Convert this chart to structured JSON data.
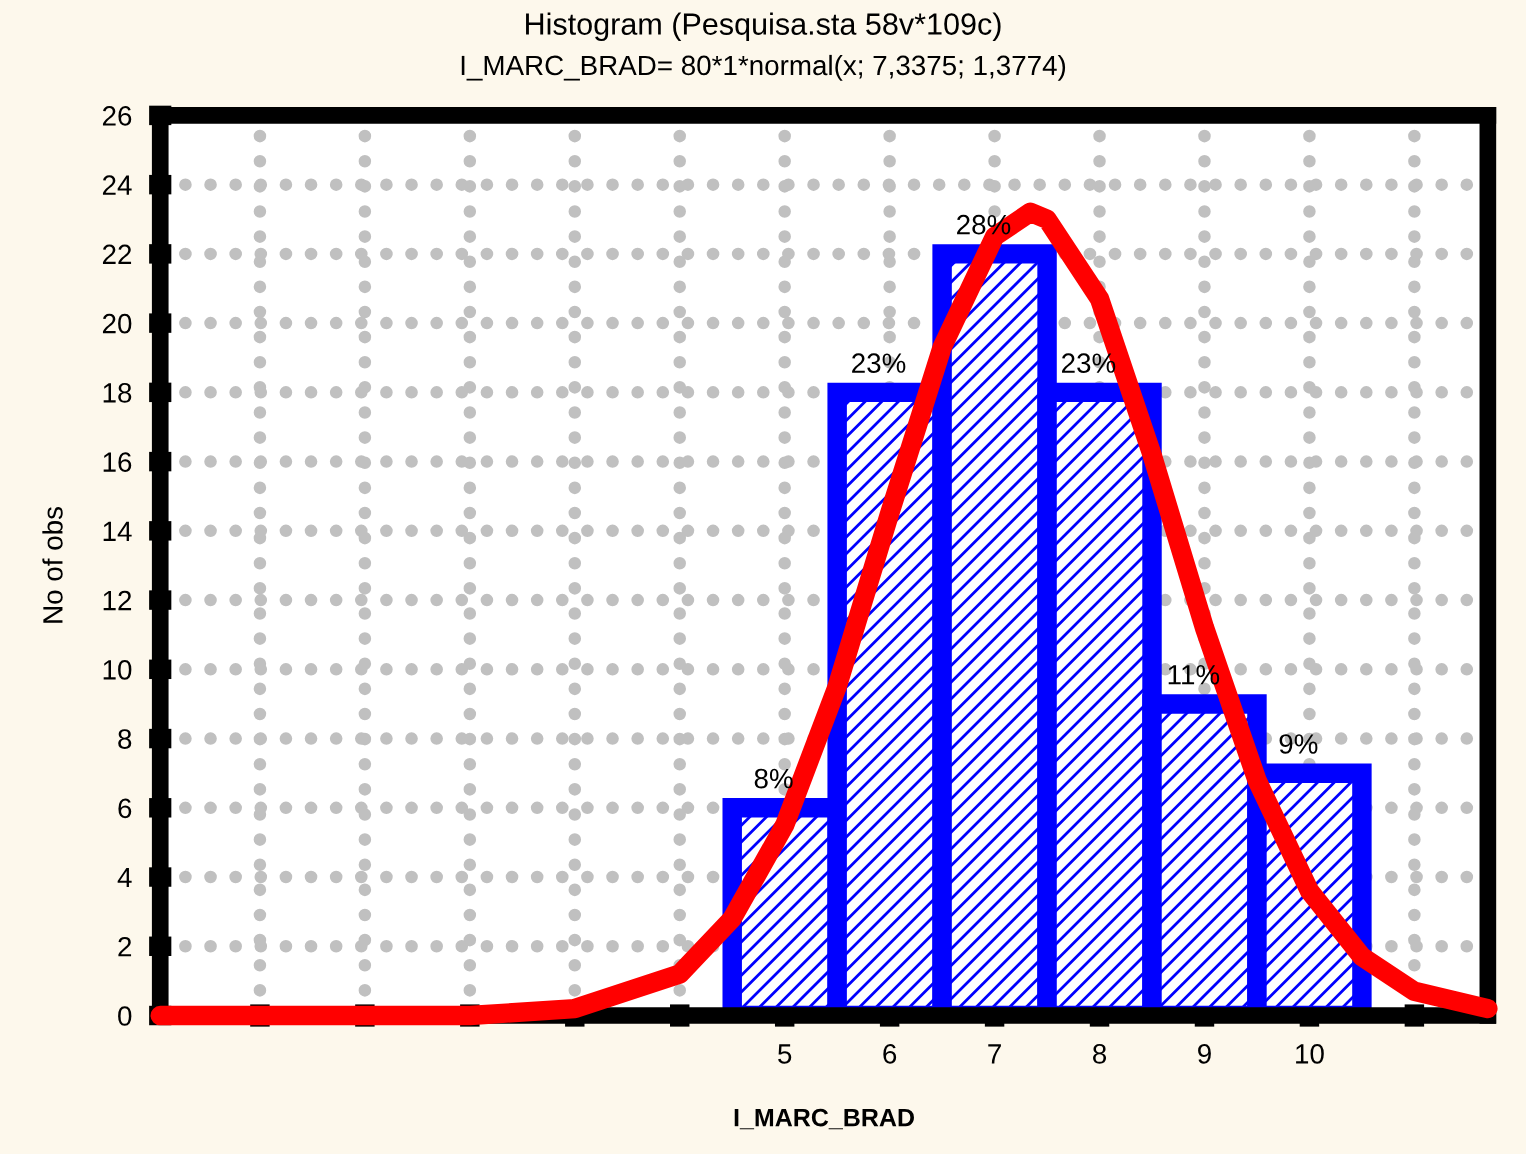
{
  "chart_data": {
    "type": "histogram",
    "title": "Histogram (Pesquisa.sta 58v*109c)",
    "subtitle": "I_MARC_BRAD= 80*1*normal(x; 7,3375; 1,3774)",
    "xlabel": "I_MARC_BRAD",
    "ylabel": "No of obs",
    "bins": [
      4.5,
      5.5,
      6.5,
      7.5,
      8.5,
      9.5,
      10.5
    ],
    "values": [
      6,
      18,
      22,
      18,
      9,
      7
    ],
    "color": "#0000ff",
    "annotations": [
      {
        "text": "8%",
        "x": 5,
        "y": 6
      },
      {
        "text": "23%",
        "x": 6,
        "y": 18
      },
      {
        "text": "28%",
        "x": 7,
        "y": 22
      },
      {
        "text": "23%",
        "x": 8,
        "y": 18
      },
      {
        "text": "11%",
        "x": 9,
        "y": 9
      },
      {
        "text": "9%",
        "x": 10,
        "y": 7
      }
    ],
    "series": [
      {
        "type": "line",
        "color": "#ff0000",
        "x": [
          -0.95,
          2,
          3,
          4,
          4.5,
          5,
          5.5,
          6,
          6.5,
          7,
          7.34,
          7.5,
          8,
          8.5,
          9,
          9.5,
          10,
          10.5,
          11,
          11.7
        ],
        "values": [
          0,
          0,
          0.2,
          1.2,
          2.8,
          5.5,
          9.5,
          14.5,
          19.3,
          22.5,
          23.2,
          23.0,
          20.7,
          16.2,
          11.2,
          6.8,
          3.6,
          1.7,
          0.7,
          0.2
        ]
      }
    ],
    "xlim": [
      -0.95,
      11.7
    ],
    "xticks": [
      {
        "value": 0,
        "label": null
      },
      {
        "value": 1,
        "label": null
      },
      {
        "value": 2,
        "label": null
      },
      {
        "value": 3,
        "label": null
      },
      {
        "value": 4,
        "label": null
      },
      5,
      6,
      7,
      8,
      9,
      10,
      {
        "value": 11,
        "label": null
      }
    ],
    "ylim": [
      0,
      26
    ],
    "yticks": [
      0,
      2,
      4,
      6,
      8,
      10,
      12,
      14,
      16,
      18,
      20,
      22,
      24,
      26
    ],
    "grid": true
  }
}
